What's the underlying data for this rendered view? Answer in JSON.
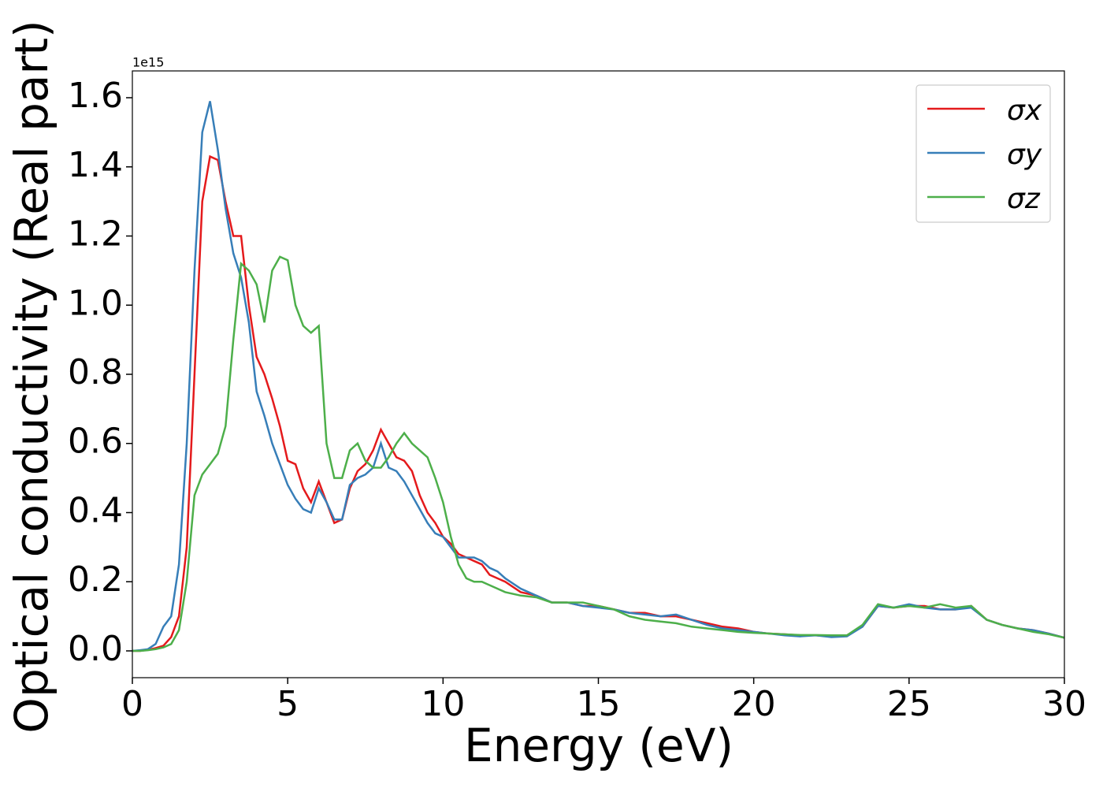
{
  "chart_data": {
    "type": "line",
    "x_label": "Energy (eV)",
    "y_label": "Optical conductivity (Real part)",
    "offset_text": "1e15",
    "x": [
      0,
      0.25,
      0.5,
      0.75,
      1,
      1.25,
      1.5,
      1.75,
      2,
      2.25,
      2.5,
      2.75,
      3,
      3.25,
      3.5,
      3.75,
      4,
      4.25,
      4.5,
      4.75,
      5,
      5.25,
      5.5,
      5.75,
      6,
      6.25,
      6.5,
      6.75,
      7,
      7.25,
      7.5,
      7.75,
      8,
      8.25,
      8.5,
      8.75,
      9,
      9.25,
      9.5,
      9.75,
      10,
      10.25,
      10.5,
      10.75,
      11,
      11.25,
      11.5,
      11.75,
      12,
      12.5,
      13,
      13.5,
      14,
      14.5,
      15,
      15.5,
      16,
      16.5,
      17,
      17.5,
      18,
      18.5,
      19,
      19.5,
      20,
      20.5,
      21,
      21.5,
      22,
      22.5,
      23,
      23.5,
      24,
      24.5,
      25,
      25.5,
      26,
      26.5,
      27,
      27.5,
      28,
      28.5,
      29,
      29.5,
      30
    ],
    "series": [
      {
        "name": "σx",
        "color": "#e41a1c",
        "values": [
          0,
          0,
          0.003,
          0.008,
          0.015,
          0.04,
          0.1,
          0.3,
          0.8,
          1.3,
          1.43,
          1.42,
          1.3,
          1.2,
          1.2,
          1.0,
          0.85,
          0.8,
          0.73,
          0.65,
          0.55,
          0.54,
          0.47,
          0.43,
          0.49,
          0.43,
          0.37,
          0.38,
          0.47,
          0.52,
          0.54,
          0.58,
          0.64,
          0.6,
          0.56,
          0.55,
          0.52,
          0.45,
          0.4,
          0.37,
          0.33,
          0.31,
          0.28,
          0.27,
          0.26,
          0.25,
          0.22,
          0.21,
          0.2,
          0.17,
          0.16,
          0.14,
          0.14,
          0.13,
          0.13,
          0.12,
          0.11,
          0.11,
          0.1,
          0.1,
          0.09,
          0.08,
          0.07,
          0.065,
          0.055,
          0.05,
          0.048,
          0.045,
          0.045,
          0.042,
          0.045,
          0.07,
          0.13,
          0.125,
          0.13,
          0.13,
          0.12,
          0.12,
          0.13,
          0.09,
          0.075,
          0.065,
          0.06,
          0.05,
          0.038
        ]
      },
      {
        "name": "σy",
        "color": "#377eb8",
        "values": [
          0,
          0.002,
          0.005,
          0.02,
          0.07,
          0.1,
          0.25,
          0.6,
          1.1,
          1.5,
          1.59,
          1.45,
          1.28,
          1.15,
          1.08,
          0.95,
          0.75,
          0.68,
          0.6,
          0.54,
          0.48,
          0.44,
          0.41,
          0.4,
          0.47,
          0.43,
          0.38,
          0.38,
          0.48,
          0.5,
          0.51,
          0.53,
          0.6,
          0.53,
          0.52,
          0.49,
          0.45,
          0.41,
          0.37,
          0.34,
          0.33,
          0.3,
          0.27,
          0.27,
          0.27,
          0.26,
          0.24,
          0.23,
          0.21,
          0.18,
          0.16,
          0.14,
          0.14,
          0.13,
          0.125,
          0.12,
          0.11,
          0.105,
          0.1,
          0.105,
          0.09,
          0.075,
          0.065,
          0.06,
          0.055,
          0.05,
          0.045,
          0.042,
          0.045,
          0.04,
          0.042,
          0.07,
          0.13,
          0.125,
          0.135,
          0.125,
          0.12,
          0.12,
          0.125,
          0.09,
          0.075,
          0.065,
          0.06,
          0.05,
          0.038
        ]
      },
      {
        "name": "σz",
        "color": "#4daf4a",
        "values": [
          0,
          0,
          0.002,
          0.005,
          0.01,
          0.02,
          0.06,
          0.2,
          0.45,
          0.51,
          0.54,
          0.57,
          0.65,
          0.9,
          1.12,
          1.1,
          1.06,
          0.95,
          1.1,
          1.14,
          1.13,
          1.0,
          0.94,
          0.92,
          0.94,
          0.6,
          0.5,
          0.5,
          0.58,
          0.6,
          0.55,
          0.53,
          0.53,
          0.56,
          0.6,
          0.63,
          0.6,
          0.58,
          0.56,
          0.5,
          0.43,
          0.33,
          0.25,
          0.21,
          0.2,
          0.2,
          0.19,
          0.18,
          0.17,
          0.16,
          0.155,
          0.14,
          0.14,
          0.14,
          0.13,
          0.12,
          0.1,
          0.09,
          0.085,
          0.08,
          0.07,
          0.065,
          0.06,
          0.055,
          0.052,
          0.05,
          0.048,
          0.046,
          0.046,
          0.045,
          0.045,
          0.075,
          0.135,
          0.125,
          0.13,
          0.125,
          0.135,
          0.125,
          0.13,
          0.09,
          0.075,
          0.065,
          0.055,
          0.048,
          0.038
        ]
      }
    ],
    "xlim": [
      0,
      30
    ],
    "ylim": [
      -0.0775,
      1.6775
    ],
    "xticks": [
      0,
      5,
      10,
      15,
      20,
      25,
      30
    ],
    "yticks": [
      {
        "value": 0,
        "label": "0.0"
      },
      0.2,
      0.4,
      0.6,
      0.8,
      {
        "value": 1,
        "label": "1.0"
      },
      1.2,
      1.4,
      1.6
    ],
    "legend": "upper right"
  }
}
